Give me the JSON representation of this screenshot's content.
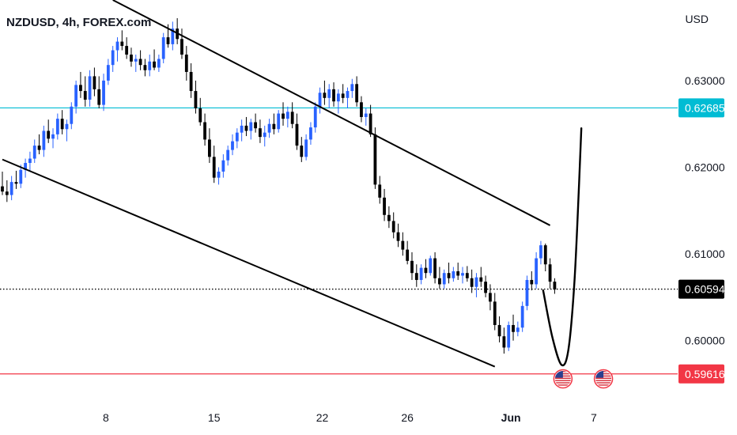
{
  "header": {
    "symbol_title": "NZDUSD, 4h, FOREX.com",
    "currency": "USD"
  },
  "chart_data": {
    "type": "candlestick",
    "title": "NZDUSD, 4h, FOREX.com",
    "ylabel": "USD",
    "ylim": [
      0.5934,
      0.6393
    ],
    "y_ticks": [
      0.63,
      0.62,
      0.61,
      0.6
    ],
    "y_tick_labels": [
      "0.63000",
      "0.62000",
      "0.61000",
      "0.60000"
    ],
    "x_ticks": [
      {
        "label": "8",
        "bar": 22.5
      },
      {
        "label": "15",
        "bar": 46.0
      },
      {
        "label": "22",
        "bar": 69.5
      },
      {
        "label": "26",
        "bar": 88.0
      },
      {
        "label": "Jun",
        "bar": 110.5
      },
      {
        "label": "7",
        "bar": 128.5
      }
    ],
    "horizontal_levels": [
      {
        "value": 0.62685,
        "label": "0.62685",
        "color": "#00bcd4",
        "style": "solid"
      },
      {
        "value": 0.60594,
        "label": "0.60594",
        "color": "#000000",
        "style": "dotted"
      },
      {
        "value": 0.59616,
        "label": "0.59616",
        "color": "#f23645",
        "style": "solid"
      }
    ],
    "trendlines": [
      {
        "name": "upper-channel",
        "from": {
          "bar": 24,
          "price": 0.6393
        },
        "to": {
          "bar": 119,
          "price": 0.6133
        }
      },
      {
        "name": "lower-channel",
        "from": {
          "bar": 0,
          "price": 0.6209
        },
        "to": {
          "bar": 107,
          "price": 0.597
        }
      }
    ],
    "projection": {
      "points": [
        [
          117.5,
          0.6058
        ],
        [
          119.5,
          0.6004
        ],
        [
          121.5,
          0.5972
        ],
        [
          123.0,
          0.599
        ],
        [
          124.3,
          0.6068
        ],
        [
          125.3,
          0.618
        ],
        [
          125.8,
          0.6245
        ]
      ]
    },
    "event_markers": [
      {
        "icon": "us-flag",
        "bar": 121.8
      },
      {
        "icon": "us-flag",
        "bar": 130.6
      }
    ],
    "candles": [
      [
        0.6178,
        0.6195,
        0.6168,
        0.6172
      ],
      [
        0.6172,
        0.6185,
        0.616,
        0.6168
      ],
      [
        0.6168,
        0.619,
        0.6162,
        0.6183
      ],
      [
        0.6183,
        0.6196,
        0.6175,
        0.6181
      ],
      [
        0.6181,
        0.6203,
        0.6176,
        0.6197
      ],
      [
        0.6197,
        0.621,
        0.6188,
        0.6205
      ],
      [
        0.6205,
        0.6218,
        0.6196,
        0.621
      ],
      [
        0.621,
        0.6232,
        0.6205,
        0.6225
      ],
      [
        0.6225,
        0.6238,
        0.6215,
        0.622
      ],
      [
        0.622,
        0.6248,
        0.6212,
        0.6242
      ],
      [
        0.6242,
        0.6255,
        0.6228,
        0.6233
      ],
      [
        0.6233,
        0.6245,
        0.6222,
        0.6238
      ],
      [
        0.6238,
        0.6262,
        0.6232,
        0.6256
      ],
      [
        0.6256,
        0.6266,
        0.6238,
        0.6244
      ],
      [
        0.6244,
        0.6255,
        0.623,
        0.625
      ],
      [
        0.625,
        0.6275,
        0.6244,
        0.627
      ],
      [
        0.627,
        0.63,
        0.6262,
        0.6295
      ],
      [
        0.6295,
        0.631,
        0.628,
        0.6288
      ],
      [
        0.6288,
        0.6305,
        0.627,
        0.6278
      ],
      [
        0.6278,
        0.6312,
        0.627,
        0.6305
      ],
      [
        0.6305,
        0.6315,
        0.6282,
        0.629
      ],
      [
        0.629,
        0.6305,
        0.6268,
        0.6272
      ],
      [
        0.6272,
        0.6308,
        0.6265,
        0.63
      ],
      [
        0.63,
        0.6325,
        0.6295,
        0.6318
      ],
      [
        0.6318,
        0.634,
        0.631,
        0.6335
      ],
      [
        0.6335,
        0.635,
        0.6322,
        0.6345
      ],
      [
        0.6345,
        0.6358,
        0.6335,
        0.634
      ],
      [
        0.634,
        0.635,
        0.6325,
        0.633
      ],
      [
        0.633,
        0.6338,
        0.6316,
        0.6322
      ],
      [
        0.6322,
        0.633,
        0.631,
        0.6325
      ],
      [
        0.6325,
        0.6335,
        0.6312,
        0.6318
      ],
      [
        0.6318,
        0.6325,
        0.6305,
        0.6312
      ],
      [
        0.6312,
        0.633,
        0.6305,
        0.6322
      ],
      [
        0.6322,
        0.6336,
        0.6312,
        0.6315
      ],
      [
        0.6315,
        0.633,
        0.631,
        0.6325
      ],
      [
        0.6325,
        0.6355,
        0.632,
        0.635
      ],
      [
        0.635,
        0.6365,
        0.6338,
        0.6342
      ],
      [
        0.6342,
        0.6368,
        0.6335,
        0.636
      ],
      [
        0.636,
        0.6372,
        0.6342,
        0.6348
      ],
      [
        0.6348,
        0.636,
        0.6325,
        0.633
      ],
      [
        0.633,
        0.634,
        0.63,
        0.631
      ],
      [
        0.631,
        0.632,
        0.628,
        0.6288
      ],
      [
        0.6288,
        0.63,
        0.6262,
        0.6268
      ],
      [
        0.6268,
        0.628,
        0.6248,
        0.6252
      ],
      [
        0.6252,
        0.6262,
        0.6225,
        0.6232
      ],
      [
        0.6232,
        0.6245,
        0.6205,
        0.6212
      ],
      [
        0.6212,
        0.6225,
        0.6182,
        0.6188
      ],
      [
        0.6188,
        0.62,
        0.618,
        0.6195
      ],
      [
        0.6195,
        0.6215,
        0.6188,
        0.6208
      ],
      [
        0.6208,
        0.6225,
        0.6202,
        0.622
      ],
      [
        0.622,
        0.6238,
        0.6214,
        0.623
      ],
      [
        0.623,
        0.6245,
        0.6222,
        0.624
      ],
      [
        0.624,
        0.6255,
        0.623,
        0.6248
      ],
      [
        0.6248,
        0.6258,
        0.6236,
        0.6242
      ],
      [
        0.6242,
        0.6256,
        0.6232,
        0.6252
      ],
      [
        0.6252,
        0.6262,
        0.624,
        0.6245
      ],
      [
        0.6245,
        0.6255,
        0.6228,
        0.6235
      ],
      [
        0.6235,
        0.6248,
        0.6224,
        0.624
      ],
      [
        0.624,
        0.6256,
        0.6234,
        0.625
      ],
      [
        0.625,
        0.6262,
        0.6238,
        0.6244
      ],
      [
        0.6244,
        0.6266,
        0.624,
        0.6262
      ],
      [
        0.6262,
        0.6275,
        0.6248,
        0.6256
      ],
      [
        0.6256,
        0.627,
        0.6246,
        0.6264
      ],
      [
        0.6264,
        0.6275,
        0.6245,
        0.625
      ],
      [
        0.625,
        0.6262,
        0.622,
        0.6225
      ],
      [
        0.6225,
        0.6235,
        0.6206,
        0.6212
      ],
      [
        0.6212,
        0.6238,
        0.6208,
        0.6232
      ],
      [
        0.6232,
        0.6252,
        0.6226,
        0.6246
      ],
      [
        0.6246,
        0.6275,
        0.624,
        0.627
      ],
      [
        0.627,
        0.6292,
        0.6262,
        0.6286
      ],
      [
        0.6286,
        0.63,
        0.6272,
        0.628
      ],
      [
        0.628,
        0.6296,
        0.6268,
        0.629
      ],
      [
        0.629,
        0.6298,
        0.627,
        0.6276
      ],
      [
        0.6276,
        0.629,
        0.6262,
        0.6285
      ],
      [
        0.6285,
        0.6296,
        0.6274,
        0.628
      ],
      [
        0.628,
        0.6292,
        0.6268,
        0.6288
      ],
      [
        0.6288,
        0.6302,
        0.628,
        0.6296
      ],
      [
        0.6296,
        0.6305,
        0.627,
        0.6275
      ],
      [
        0.6275,
        0.6282,
        0.6252,
        0.6258
      ],
      [
        0.6258,
        0.6268,
        0.6248,
        0.6262
      ],
      [
        0.6262,
        0.6272,
        0.6235,
        0.6238
      ],
      [
        0.6238,
        0.6246,
        0.6175,
        0.618
      ],
      [
        0.618,
        0.619,
        0.6158,
        0.6165
      ],
      [
        0.6165,
        0.6175,
        0.6138,
        0.6145
      ],
      [
        0.6145,
        0.6155,
        0.613,
        0.6138
      ],
      [
        0.6138,
        0.6148,
        0.6118,
        0.6125
      ],
      [
        0.6125,
        0.6135,
        0.6108,
        0.6115
      ],
      [
        0.6115,
        0.6125,
        0.6098,
        0.6105
      ],
      [
        0.6105,
        0.6115,
        0.6088,
        0.6092
      ],
      [
        0.6092,
        0.6102,
        0.607,
        0.6078
      ],
      [
        0.6078,
        0.6088,
        0.6062,
        0.607
      ],
      [
        0.607,
        0.6088,
        0.6065,
        0.6084
      ],
      [
        0.6084,
        0.6094,
        0.6072,
        0.6078
      ],
      [
        0.6078,
        0.6098,
        0.6075,
        0.6095
      ],
      [
        0.6095,
        0.6102,
        0.6066,
        0.6072
      ],
      [
        0.6072,
        0.6085,
        0.606,
        0.6065
      ],
      [
        0.6065,
        0.6082,
        0.606,
        0.6078
      ],
      [
        0.6078,
        0.609,
        0.6066,
        0.6072
      ],
      [
        0.6072,
        0.6085,
        0.6068,
        0.608
      ],
      [
        0.608,
        0.609,
        0.607,
        0.6075
      ],
      [
        0.6075,
        0.6085,
        0.6066,
        0.6078
      ],
      [
        0.6078,
        0.6086,
        0.6068,
        0.6072
      ],
      [
        0.6072,
        0.6082,
        0.6055,
        0.6062
      ],
      [
        0.6062,
        0.6078,
        0.605,
        0.6073
      ],
      [
        0.6073,
        0.6085,
        0.6062,
        0.6068
      ],
      [
        0.6068,
        0.6075,
        0.605,
        0.6055
      ],
      [
        0.6055,
        0.6065,
        0.6035,
        0.6045
      ],
      [
        0.6045,
        0.6055,
        0.6012,
        0.6018
      ],
      [
        0.6018,
        0.6028,
        0.5998,
        0.6005
      ],
      [
        0.6005,
        0.6015,
        0.5985,
        0.5992
      ],
      [
        0.5992,
        0.6022,
        0.5988,
        0.6018
      ],
      [
        0.6018,
        0.603,
        0.6,
        0.601
      ],
      [
        0.601,
        0.6022,
        0.6005,
        0.6015
      ],
      [
        0.6015,
        0.6045,
        0.601,
        0.604
      ],
      [
        0.604,
        0.6075,
        0.6035,
        0.607
      ],
      [
        0.607,
        0.608,
        0.6058,
        0.6065
      ],
      [
        0.6065,
        0.6102,
        0.606,
        0.6095
      ],
      [
        0.6095,
        0.6115,
        0.6088,
        0.611
      ],
      [
        0.611,
        0.6112,
        0.608,
        0.6088
      ],
      [
        0.6088,
        0.6095,
        0.606,
        0.6068
      ],
      [
        0.6068,
        0.6072,
        0.6054,
        0.6059
      ]
    ]
  },
  "colors": {
    "bull_candle": "#2962ff",
    "bear_candle": "#000000",
    "price_axis_text": "#131722"
  }
}
